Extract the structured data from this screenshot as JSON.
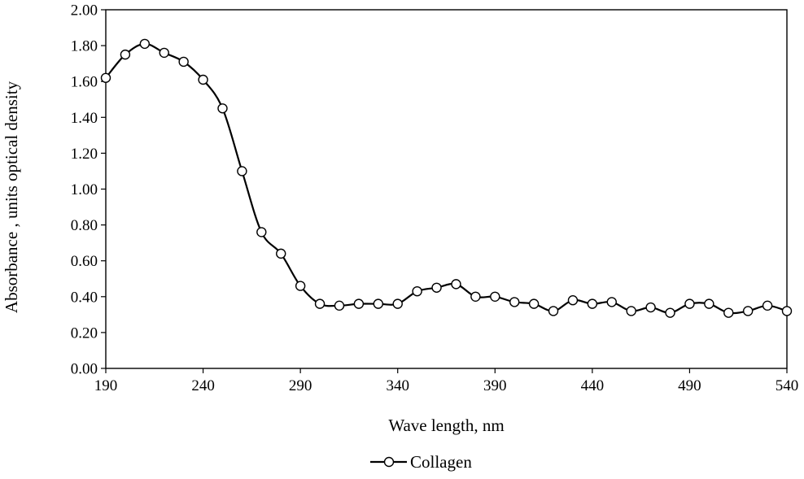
{
  "chart_data": {
    "type": "line",
    "title": "",
    "xlabel": "Wave length, nm",
    "ylabel": "Absorbance , units optical density",
    "xlim": [
      190,
      540
    ],
    "ylim": [
      0,
      2
    ],
    "grid": false,
    "legend_position": "bottom-center",
    "x_ticks": [
      190,
      240,
      290,
      340,
      390,
      440,
      490,
      540
    ],
    "x_tick_labels": [
      "190",
      "240",
      "290",
      "340",
      "390",
      "440",
      "490",
      "540"
    ],
    "y_ticks": [
      0,
      0.2,
      0.4,
      0.6,
      0.8,
      1.0,
      1.2,
      1.4,
      1.6,
      1.8,
      2.0
    ],
    "y_tick_labels": [
      "0.00",
      "0.20",
      "0.40",
      "0.60",
      "0.80",
      "1.00",
      "1.20",
      "1.40",
      "1.60",
      "1.80",
      "2.00"
    ],
    "series": [
      {
        "name": "Collagen",
        "color": "#000000",
        "marker": "open-circle",
        "x": [
          190,
          200,
          210,
          220,
          230,
          240,
          250,
          260,
          270,
          280,
          290,
          300,
          310,
          320,
          330,
          340,
          350,
          360,
          370,
          380,
          390,
          400,
          410,
          420,
          430,
          440,
          450,
          460,
          470,
          480,
          490,
          500,
          510,
          520,
          530,
          540
        ],
        "values": [
          1.62,
          1.75,
          1.81,
          1.76,
          1.71,
          1.61,
          1.45,
          1.1,
          0.76,
          0.64,
          0.46,
          0.36,
          0.35,
          0.36,
          0.36,
          0.36,
          0.43,
          0.45,
          0.47,
          0.4,
          0.4,
          0.37,
          0.36,
          0.32,
          0.38,
          0.36,
          0.37,
          0.32,
          0.34,
          0.31,
          0.36,
          0.36,
          0.31,
          0.32,
          0.35,
          0.32
        ]
      }
    ]
  }
}
